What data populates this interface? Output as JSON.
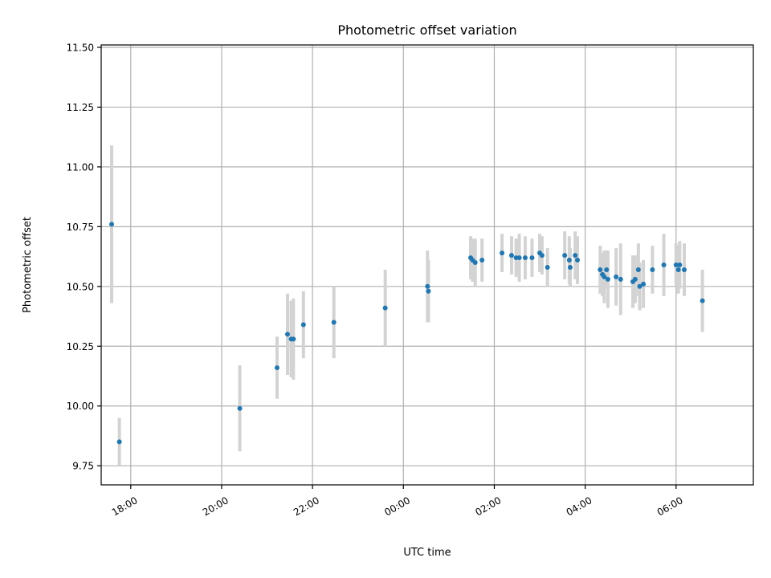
{
  "chart_data": {
    "type": "scatter",
    "title": "Photometric offset variation",
    "xlabel": "UTC time",
    "ylabel": "Photometric offset",
    "x_unit": "hours",
    "xlim": [
      -6.65,
      7.7
    ],
    "ylim": [
      9.67,
      11.51
    ],
    "x_ticks": [
      {
        "value": -6,
        "label": "18:00"
      },
      {
        "value": -4,
        "label": "20:00"
      },
      {
        "value": -2,
        "label": "22:00"
      },
      {
        "value": 0,
        "label": "00:00"
      },
      {
        "value": 2,
        "label": "02:00"
      },
      {
        "value": 4,
        "label": "04:00"
      },
      {
        "value": 6,
        "label": "06:00"
      }
    ],
    "y_ticks": [
      {
        "value": 9.75,
        "label": "9.75"
      },
      {
        "value": 10.0,
        "label": "10.00"
      },
      {
        "value": 10.25,
        "label": "10.25"
      },
      {
        "value": 10.5,
        "label": "10.50"
      },
      {
        "value": 10.75,
        "label": "10.75"
      },
      {
        "value": 11.0,
        "label": "11.00"
      },
      {
        "value": 11.25,
        "label": "11.25"
      },
      {
        "value": 11.5,
        "label": "11.50"
      }
    ],
    "grid": true,
    "colors": {
      "point": "#1f77b4",
      "errorbar": "#d3d3d3"
    },
    "points": [
      {
        "x": -6.42,
        "y": 10.76,
        "err": 0.33
      },
      {
        "x": -6.25,
        "y": 9.85,
        "err": 0.1
      },
      {
        "x": -3.6,
        "y": 9.99,
        "err": 0.18
      },
      {
        "x": -2.78,
        "y": 10.16,
        "err": 0.13
      },
      {
        "x": -2.55,
        "y": 10.3,
        "err": 0.17
      },
      {
        "x": -2.47,
        "y": 10.28,
        "err": 0.16
      },
      {
        "x": -2.42,
        "y": 10.28,
        "err": 0.17
      },
      {
        "x": -2.2,
        "y": 10.34,
        "err": 0.14
      },
      {
        "x": -1.53,
        "y": 10.35,
        "err": 0.15
      },
      {
        "x": -0.4,
        "y": 10.41,
        "err": 0.16
      },
      {
        "x": 0.53,
        "y": 10.5,
        "err": 0.15
      },
      {
        "x": 0.55,
        "y": 10.48,
        "err": 0.13
      },
      {
        "x": 1.48,
        "y": 10.62,
        "err": 0.09
      },
      {
        "x": 1.52,
        "y": 10.61,
        "err": 0.09
      },
      {
        "x": 1.58,
        "y": 10.6,
        "err": 0.1
      },
      {
        "x": 1.73,
        "y": 10.61,
        "err": 0.09
      },
      {
        "x": 2.17,
        "y": 10.64,
        "err": 0.08
      },
      {
        "x": 2.38,
        "y": 10.63,
        "err": 0.08
      },
      {
        "x": 2.48,
        "y": 10.62,
        "err": 0.08
      },
      {
        "x": 2.55,
        "y": 10.62,
        "err": 0.1
      },
      {
        "x": 2.68,
        "y": 10.62,
        "err": 0.09
      },
      {
        "x": 2.83,
        "y": 10.62,
        "err": 0.08
      },
      {
        "x": 3.0,
        "y": 10.64,
        "err": 0.08
      },
      {
        "x": 3.05,
        "y": 10.63,
        "err": 0.08
      },
      {
        "x": 3.17,
        "y": 10.58,
        "err": 0.08
      },
      {
        "x": 3.55,
        "y": 10.63,
        "err": 0.1
      },
      {
        "x": 3.65,
        "y": 10.61,
        "err": 0.1
      },
      {
        "x": 3.67,
        "y": 10.58,
        "err": 0.08
      },
      {
        "x": 3.78,
        "y": 10.63,
        "err": 0.1
      },
      {
        "x": 3.83,
        "y": 10.61,
        "err": 0.1
      },
      {
        "x": 4.33,
        "y": 10.57,
        "err": 0.1
      },
      {
        "x": 4.38,
        "y": 10.55,
        "err": 0.09
      },
      {
        "x": 4.42,
        "y": 10.54,
        "err": 0.11
      },
      {
        "x": 4.47,
        "y": 10.57,
        "err": 0.08
      },
      {
        "x": 4.5,
        "y": 10.53,
        "err": 0.12
      },
      {
        "x": 4.68,
        "y": 10.54,
        "err": 0.12
      },
      {
        "x": 4.78,
        "y": 10.53,
        "err": 0.15
      },
      {
        "x": 5.05,
        "y": 10.52,
        "err": 0.11
      },
      {
        "x": 5.1,
        "y": 10.53,
        "err": 0.1
      },
      {
        "x": 5.17,
        "y": 10.57,
        "err": 0.11
      },
      {
        "x": 5.2,
        "y": 10.5,
        "err": 0.1
      },
      {
        "x": 5.28,
        "y": 10.51,
        "err": 0.1
      },
      {
        "x": 5.48,
        "y": 10.57,
        "err": 0.1
      },
      {
        "x": 5.73,
        "y": 10.59,
        "err": 0.13
      },
      {
        "x": 6.0,
        "y": 10.59,
        "err": 0.09
      },
      {
        "x": 6.05,
        "y": 10.57,
        "err": 0.1
      },
      {
        "x": 6.08,
        "y": 10.59,
        "err": 0.1
      },
      {
        "x": 6.18,
        "y": 10.57,
        "err": 0.11
      },
      {
        "x": 6.58,
        "y": 10.44,
        "err": 0.13
      }
    ]
  }
}
